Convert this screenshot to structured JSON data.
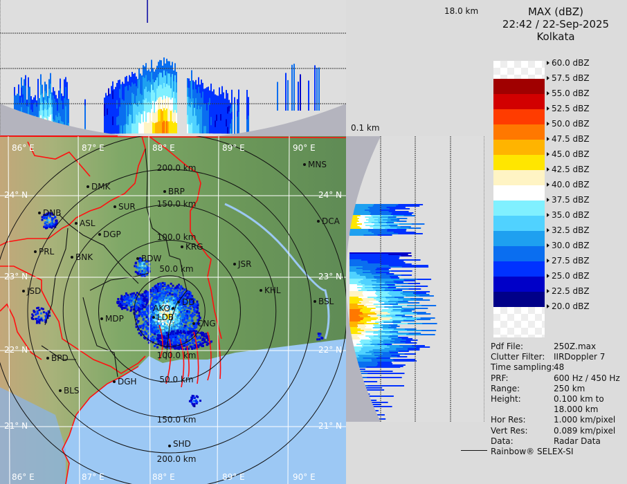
{
  "header": {
    "product": "MAX (dBZ)",
    "datetime": "22:42 / 22-Sep-2025",
    "station": "Kolkata"
  },
  "cross_section": {
    "top_height_label": "18.0 km",
    "bottom_height_label": "0.1 km"
  },
  "colorbar": {
    "labels": [
      "60.0 dBZ",
      "57.5 dBZ",
      "55.0 dBZ",
      "52.5 dBZ",
      "50.0 dBZ",
      "47.5 dBZ",
      "45.0 dBZ",
      "42.5 dBZ",
      "40.0 dBZ",
      "37.5 dBZ",
      "35.0 dBZ",
      "32.5 dBZ",
      "30.0 dBZ",
      "27.5 dBZ",
      "25.0 dBZ",
      "22.5 dBZ",
      "20.0 dBZ"
    ],
    "colors": [
      "#a00000",
      "#d20000",
      "#ff3c00",
      "#ff7800",
      "#ffb400",
      "#ffe600",
      "#fff4c4",
      "#ffffff",
      "#80f0ff",
      "#50d2ff",
      "#1ea0f0",
      "#0a6ef0",
      "#0032ff",
      "#0000c8",
      "#000088"
    ]
  },
  "info": [
    {
      "key": "Pdf File:",
      "value": "250Z.max"
    },
    {
      "key": "Clutter Filter:",
      "value": "IIRDoppler 7"
    },
    {
      "key": "Time sampling:",
      "value": "48"
    },
    {
      "key": "PRF:",
      "value": "600 Hz / 450 Hz"
    },
    {
      "key": "Range:",
      "value": "250 km"
    },
    {
      "key": "Height:",
      "value": "0.100 km to"
    },
    {
      "key": "",
      "value": "18.000 km"
    },
    {
      "key": "Hor Res:",
      "value": "1.000 km/pixel"
    },
    {
      "key": "Vert Res:",
      "value": "0.089 km/pixel"
    },
    {
      "key": "Data:",
      "value": "Radar Data"
    }
  ],
  "brand": "Rainbow® SELEX-SI",
  "map": {
    "longitude_labels": [
      "86° E",
      "87° E",
      "88° E",
      "89° E",
      "90° E"
    ],
    "latitude_labels": [
      "24° N",
      "23° N",
      "22° N",
      "21° N"
    ],
    "range_ring_labels": [
      "50.0 km",
      "100.0 km",
      "150.0 km",
      "200.0 km"
    ],
    "cities": [
      "MNS",
      "DMK",
      "BRP",
      "DNB",
      "SUR",
      "ASL",
      "DGP",
      "DCA",
      "KRG",
      "PRL",
      "BNK",
      "BDW",
      "JSR",
      "JSD",
      "KHL",
      "BSL",
      "DD",
      "AKO",
      "LDB",
      "CNG",
      "MDP",
      "BPD",
      "DGH",
      "BLS",
      "SHD"
    ],
    "colors": {
      "land": "#6e9a5c",
      "sea": "#9cc8f4",
      "borders": "#ff1010",
      "rings": "#111111",
      "grid": "#ffffff"
    }
  }
}
